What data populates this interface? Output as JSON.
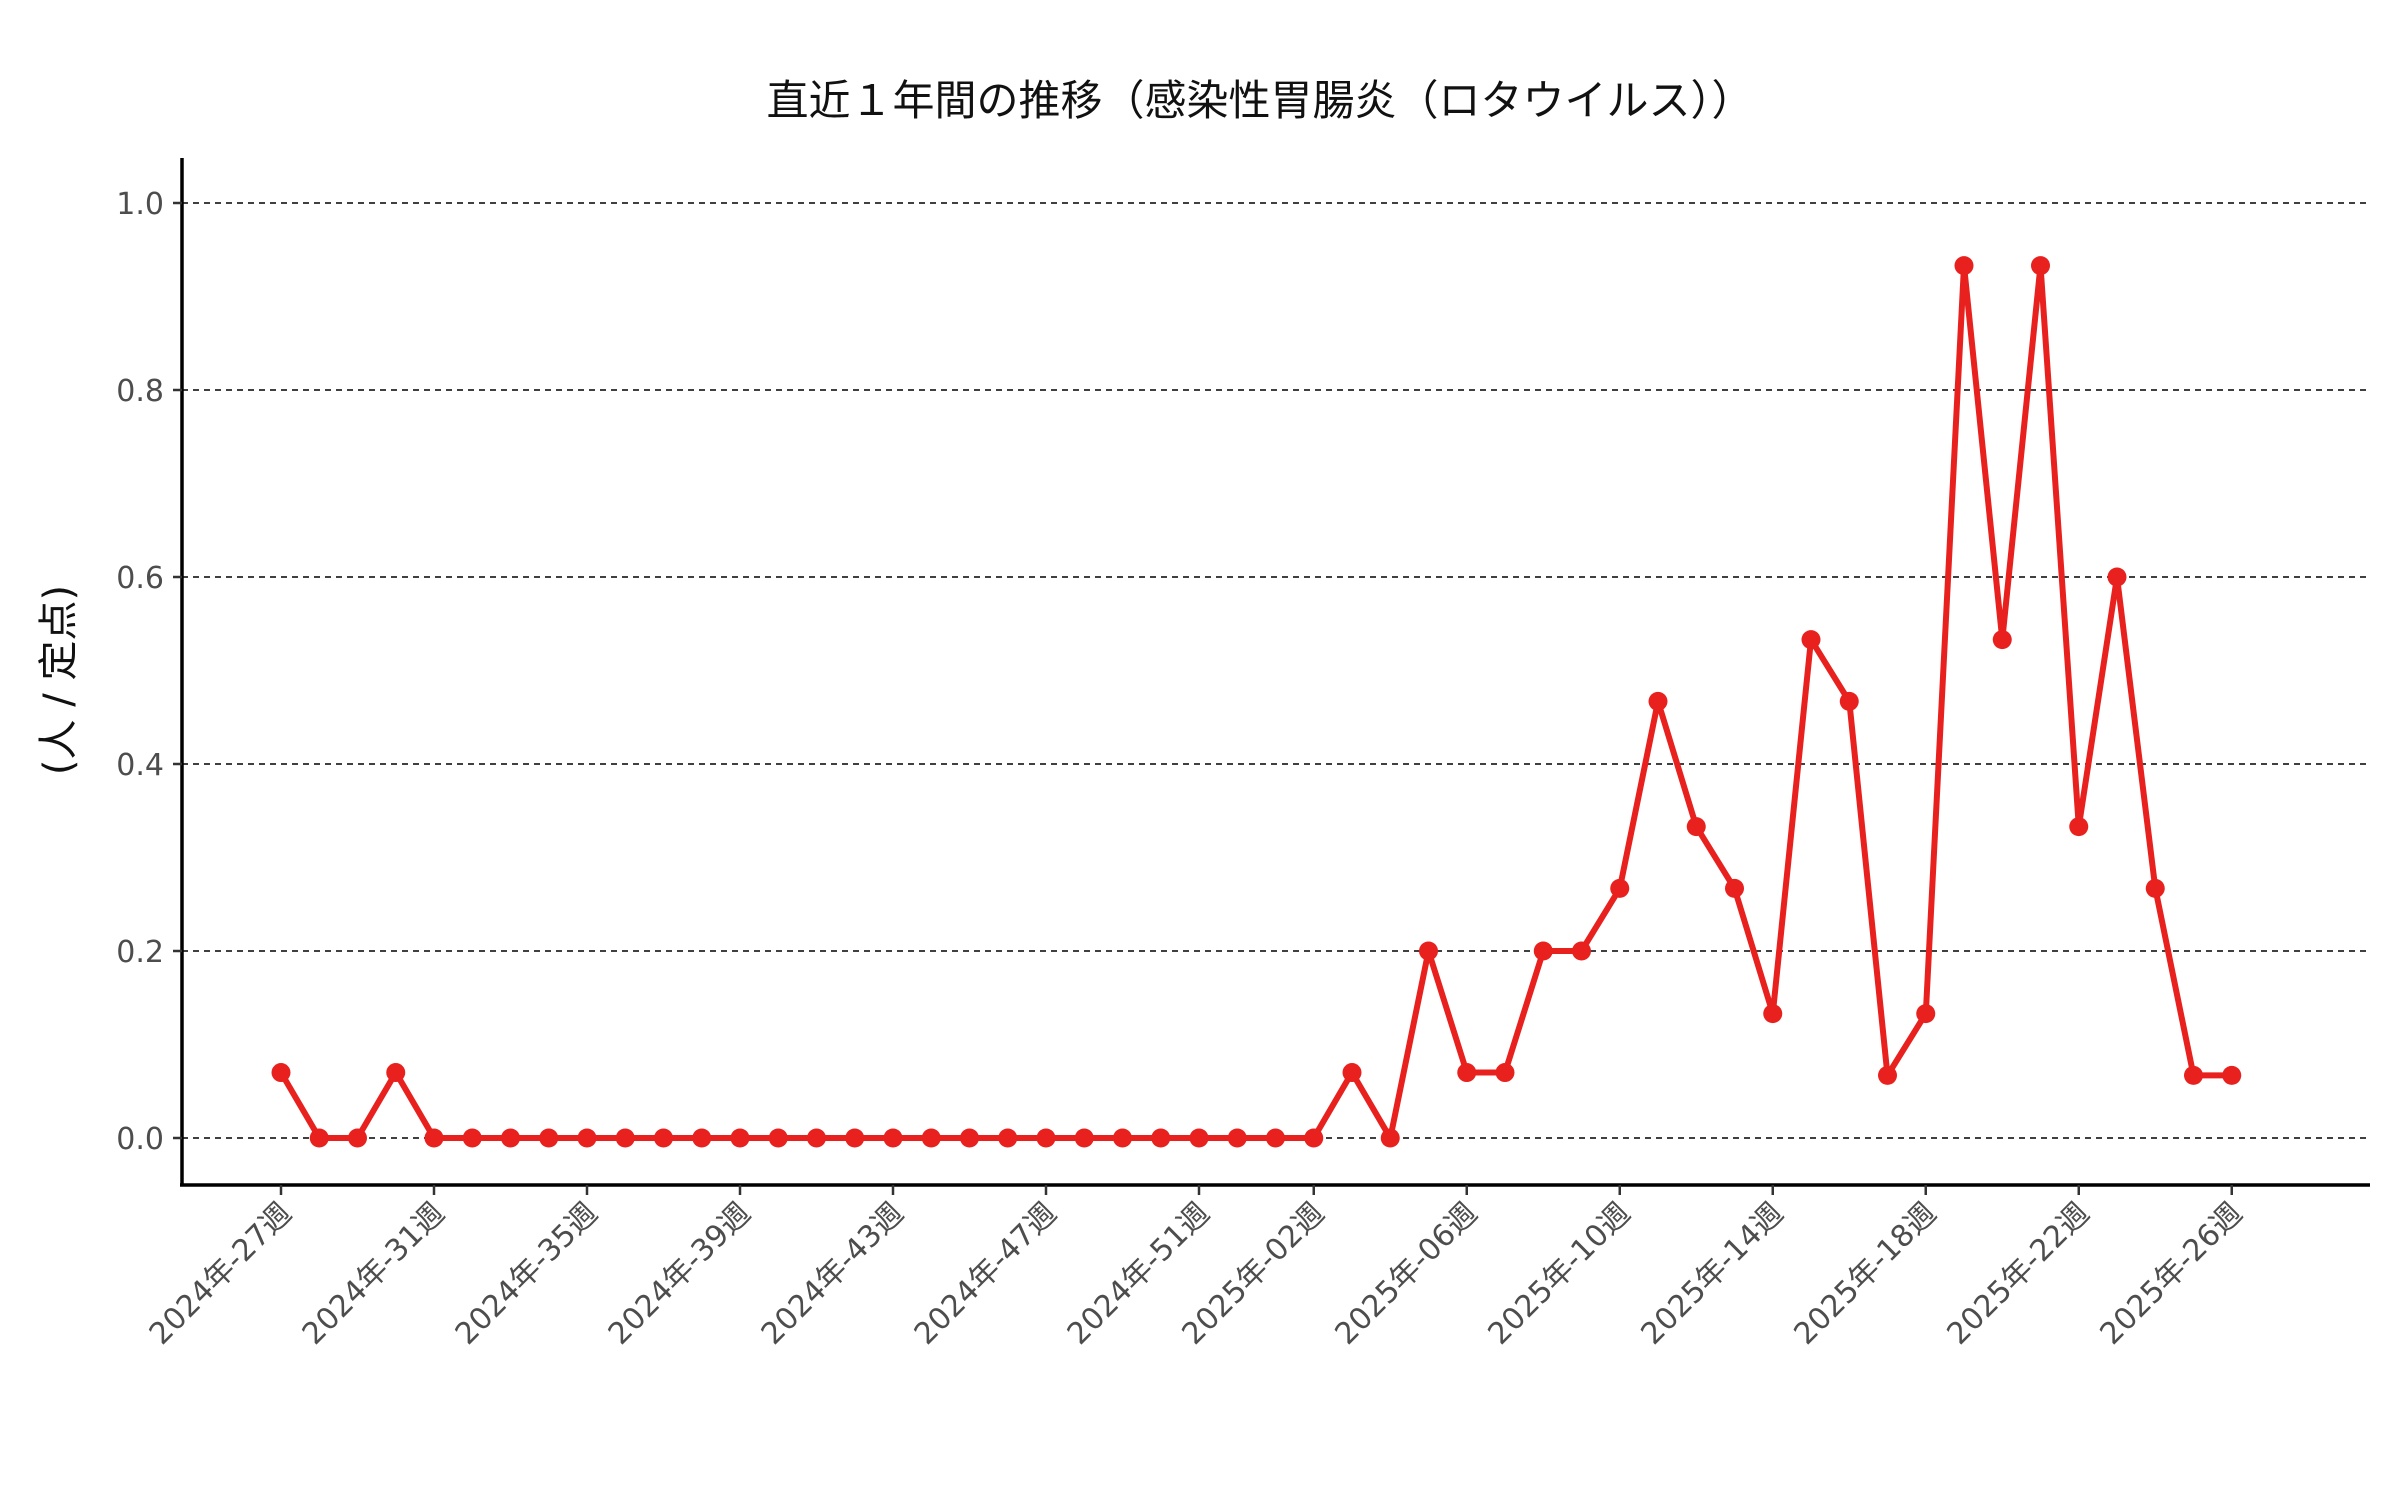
{
  "chart_data": {
    "type": "line",
    "title": "直近１年間の推移（感染性胃腸炎（ロタウイルス））",
    "xlabel": "",
    "ylabel": "(人 / 定点)",
    "ylim": [
      0,
      1.0
    ],
    "yticks": [
      "0.0",
      "0.2",
      "0.4",
      "0.6",
      "0.8",
      "1.0"
    ],
    "ytick_values": [
      0,
      0.2,
      0.4,
      0.6,
      0.8,
      1.0
    ],
    "xtick_labels": [
      "2024年-27週",
      "2024年-31週",
      "2024年-35週",
      "2024年-39週",
      "2024年-43週",
      "2024年-47週",
      "2024年-51週",
      "2025年-02週",
      "2025年-06週",
      "2025年-10週",
      "2025年-14週",
      "2025年-18週",
      "2025年-22週",
      "2025年-26週"
    ],
    "grid": "horizontal dashed",
    "series": [
      {
        "color": "#e8211e",
        "x": [
          "2024年-27週",
          "2024年-28週",
          "2024年-29週",
          "2024年-30週",
          "2024年-31週",
          "2024年-32週",
          "2024年-33週",
          "2024年-34週",
          "2024年-35週",
          "2024年-36週",
          "2024年-37週",
          "2024年-38週",
          "2024年-39週",
          "2024年-40週",
          "2024年-41週",
          "2024年-42週",
          "2024年-43週",
          "2024年-44週",
          "2024年-45週",
          "2024年-46週",
          "2024年-47週",
          "2024年-48週",
          "2024年-49週",
          "2024年-50週",
          "2024年-51週",
          "2024年-52週",
          "2025年-01週",
          "2025年-02週",
          "2025年-03週",
          "2025年-04週",
          "2025年-05週",
          "2025年-06週",
          "2025年-07週",
          "2025年-08週",
          "2025年-09週",
          "2025年-10週",
          "2025年-11週",
          "2025年-12週",
          "2025年-13週",
          "2025年-14週",
          "2025年-15週",
          "2025年-16週",
          "2025年-17週",
          "2025年-18週",
          "2025年-19週",
          "2025年-20週",
          "2025年-21週",
          "2025年-22週",
          "2025年-23週",
          "2025年-24週",
          "2025年-25週",
          "2025年-26週"
        ],
        "values": [
          0.07,
          0,
          0,
          0.07,
          0,
          0,
          0,
          0,
          0,
          0,
          0,
          0,
          0,
          0,
          0,
          0,
          0,
          0,
          0,
          0,
          0,
          0,
          0,
          0,
          0,
          0,
          0,
          0,
          0.07,
          0,
          0.2,
          0.07,
          0.07,
          0.2,
          0.2,
          0.267,
          0.467,
          0.333,
          0.267,
          0.133,
          0.533,
          0.467,
          0.067,
          0.133,
          0.933,
          0.533,
          0.933,
          0.333,
          0.6,
          0.267,
          0.067,
          0.067
        ]
      }
    ]
  }
}
